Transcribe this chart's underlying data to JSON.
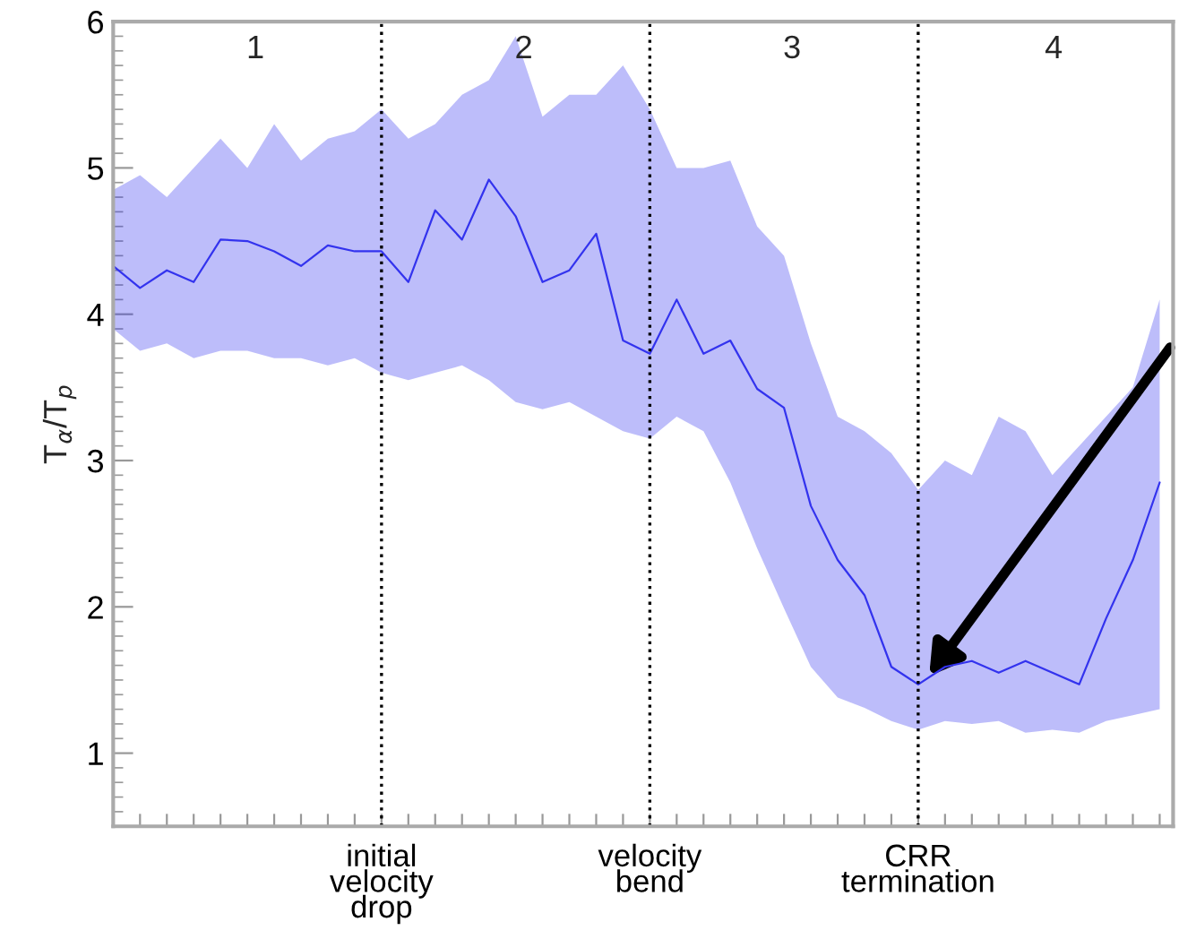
{
  "chart_data": {
    "type": "line",
    "ylabel": "T$_{α}$/T$_{p}$",
    "categories": [
      null,
      null,
      null,
      null,
      null,
      null,
      null,
      null,
      null,
      null,
      "initial\nvelocity\ndrop",
      null,
      null,
      null,
      null,
      null,
      null,
      null,
      null,
      null,
      "velocity\nbend",
      null,
      null,
      null,
      null,
      null,
      null,
      null,
      null,
      null,
      "CRR\ntermination",
      null,
      null,
      null,
      null,
      null,
      null,
      null,
      null,
      null
    ],
    "series": [
      {
        "color": "#3333ee",
        "values": [
          4.33,
          4.18,
          4.3,
          4.22,
          4.51,
          4.5,
          4.43,
          4.33,
          4.47,
          4.43,
          4.43,
          4.22,
          4.71,
          4.51,
          4.92,
          4.67,
          4.22,
          4.3,
          4.55,
          3.82,
          3.73,
          4.1,
          3.73,
          3.82,
          3.49,
          3.36,
          2.69,
          2.32,
          2.08,
          1.59,
          1.47,
          1.59,
          1.63,
          1.55,
          1.63,
          1.55,
          1.47,
          1.92,
          2.32,
          2.85
        ],
        "lower": [
          3.9,
          3.75,
          3.8,
          3.7,
          3.75,
          3.75,
          3.7,
          3.7,
          3.65,
          3.7,
          3.6,
          3.55,
          3.6,
          3.65,
          3.55,
          3.4,
          3.35,
          3.4,
          3.3,
          3.2,
          3.15,
          3.3,
          3.2,
          2.85,
          2.4,
          1.99,
          1.59,
          1.38,
          1.31,
          1.22,
          1.16,
          1.22,
          1.2,
          1.22,
          1.14,
          1.16,
          1.14,
          1.22,
          1.26,
          1.3
        ],
        "upper": [
          4.85,
          4.95,
          4.8,
          5.0,
          5.2,
          5.0,
          5.3,
          5.05,
          5.2,
          5.25,
          5.4,
          5.2,
          5.3,
          5.5,
          5.6,
          5.9,
          5.35,
          5.5,
          5.5,
          5.7,
          5.4,
          5.0,
          5.0,
          5.05,
          4.6,
          4.4,
          3.8,
          3.3,
          3.2,
          3.05,
          2.8,
          3.0,
          2.9,
          3.3,
          3.2,
          2.9,
          3.1,
          3.3,
          3.5,
          4.1
        ]
      }
    ],
    "ylim": [
      0.5,
      6
    ],
    "yticks": [
      1,
      2,
      3,
      4,
      5,
      6
    ],
    "ref_lines": [
      {
        "axis": "x",
        "value": "initial\nvelocity\ndrop",
        "color": "#000000",
        "line_style": "dotted"
      },
      {
        "axis": "x",
        "value": "velocity\nbend",
        "color": "#000000",
        "line_style": "dotted"
      },
      {
        "axis": "x",
        "value": "CRR\ntermination",
        "color": "#000000",
        "line_style": "dotted"
      }
    ],
    "annotations": [
      "1",
      "2",
      "3",
      "4"
    ],
    "grid": false,
    "legend": false,
    "marker": "none",
    "line_style": "solid"
  }
}
